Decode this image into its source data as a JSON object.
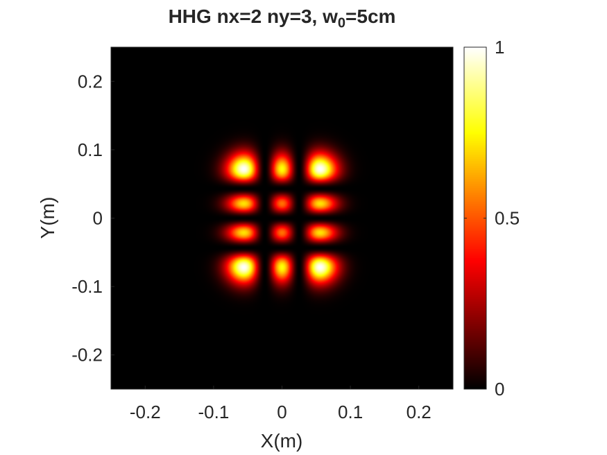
{
  "chart_data": {
    "type": "heatmap",
    "title_prefix": "HHG nx=2 ny=3, w",
    "title_subscript": "0",
    "title_suffix": "=5cm",
    "xlabel": "X(m)",
    "ylabel": "Y(m)",
    "xlim": [
      -0.25,
      0.25
    ],
    "ylim": [
      -0.25,
      0.25
    ],
    "x_ticks": [
      -0.2,
      -0.1,
      0,
      0.1,
      0.2
    ],
    "x_tick_labels": [
      "-0.2",
      "-0.1",
      "0",
      "0.1",
      "0.2"
    ],
    "y_ticks": [
      0.2,
      0.1,
      0,
      -0.1,
      -0.2
    ],
    "y_tick_labels": [
      "0.2",
      "0.1",
      "0",
      "-0.1",
      "-0.2"
    ],
    "colorbar": {
      "range": [
        0,
        1
      ],
      "ticks": [
        1,
        0.5,
        0
      ],
      "tick_labels": [
        "1",
        "0.5",
        "0"
      ],
      "colormap": "hot"
    },
    "field": {
      "mode": "Hermite-Gaussian",
      "nx": 2,
      "ny": 3,
      "w0_m": 0.05,
      "normalized": true
    },
    "background_color": "#000000"
  }
}
